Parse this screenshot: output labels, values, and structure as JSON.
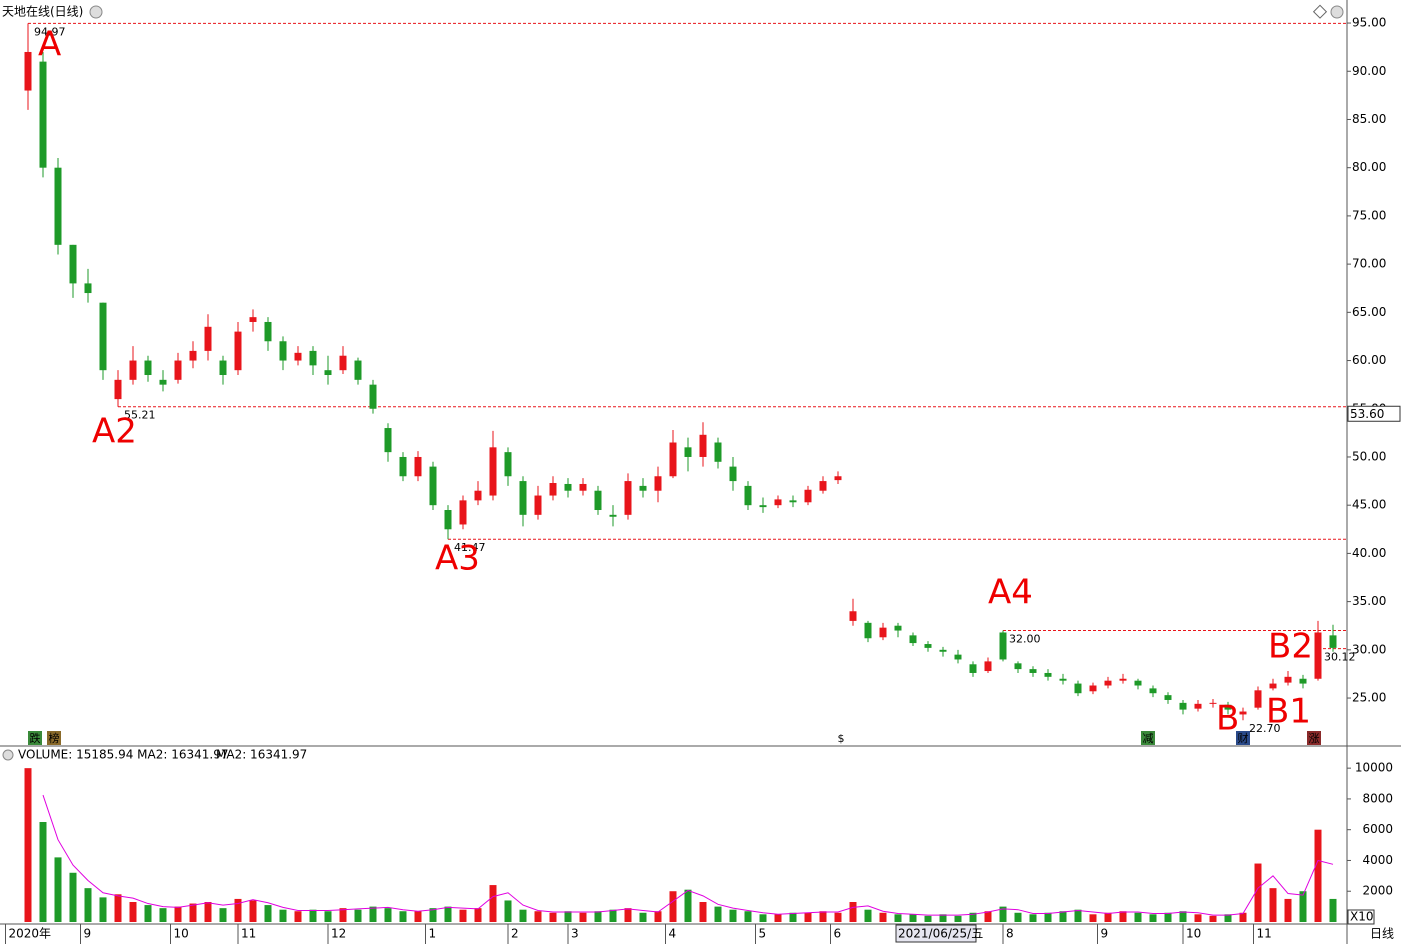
{
  "chart_data": [
    {
      "type": "candlestick",
      "title": "天地在线(日线)",
      "x": [
        0,
        1,
        2,
        3,
        4,
        5,
        6,
        7,
        8,
        9,
        10,
        11,
        12,
        13,
        14,
        15,
        16,
        17,
        18,
        19,
        20,
        21,
        22,
        23,
        24,
        25,
        26,
        27,
        28,
        29,
        30,
        31,
        32,
        33,
        34,
        35,
        36,
        37,
        38,
        39,
        40,
        41,
        42,
        43,
        44,
        45,
        46,
        47,
        48,
        49,
        50,
        51,
        52,
        53,
        54,
        55,
        56,
        57,
        58,
        59,
        60,
        61,
        62,
        63,
        64,
        65,
        66,
        67,
        68,
        69,
        70,
        71,
        72,
        73,
        74,
        75,
        76,
        77,
        78,
        79,
        80,
        81,
        82,
        83,
        84,
        85,
        86,
        87
      ],
      "ohlc": [
        [
          88,
          94.97,
          86,
          92
        ],
        [
          91,
          92,
          79,
          80
        ],
        [
          80,
          81,
          71,
          72
        ],
        [
          72,
          72,
          66.5,
          68
        ],
        [
          68,
          69.5,
          66,
          67
        ],
        [
          66,
          66,
          58,
          59
        ],
        [
          56,
          59,
          55.21,
          58
        ],
        [
          58,
          61.5,
          57.5,
          60
        ],
        [
          60,
          60.5,
          57.8,
          58.5
        ],
        [
          58,
          59,
          56.8,
          57.5
        ],
        [
          58,
          60.8,
          57.6,
          60
        ],
        [
          60,
          62,
          59.2,
          61
        ],
        [
          61,
          64.8,
          60,
          63.5
        ],
        [
          60,
          60.5,
          57.5,
          58.5
        ],
        [
          59,
          64,
          58.5,
          63
        ],
        [
          64,
          65.3,
          63,
          64.5
        ],
        [
          64,
          64.5,
          61,
          62
        ],
        [
          62,
          62.5,
          59,
          60
        ],
        [
          60,
          61.5,
          59.5,
          60.8
        ],
        [
          61,
          61.5,
          58.5,
          59.5
        ],
        [
          59,
          60.5,
          57.5,
          58.5
        ],
        [
          59,
          61.5,
          58.6,
          60.5
        ],
        [
          60,
          60.3,
          57.5,
          58
        ],
        [
          57.5,
          58,
          54.5,
          55
        ],
        [
          53,
          53.5,
          49.5,
          50.5
        ],
        [
          50,
          50.5,
          47.5,
          48
        ],
        [
          48,
          50.6,
          47.5,
          50
        ],
        [
          49,
          49.5,
          44.5,
          45
        ],
        [
          44.5,
          45,
          41.47,
          42.5
        ],
        [
          43,
          46,
          42.5,
          45.5
        ],
        [
          45.5,
          47.5,
          45,
          46.5
        ],
        [
          46,
          52.7,
          45.5,
          51
        ],
        [
          50.5,
          51,
          47,
          48
        ],
        [
          47.5,
          48,
          42.8,
          44
        ],
        [
          44,
          47,
          43.5,
          46
        ],
        [
          46,
          48,
          45.5,
          47.3
        ],
        [
          47.2,
          47.8,
          45.8,
          46.5
        ],
        [
          46.5,
          47.8,
          46,
          47.2
        ],
        [
          46.5,
          47,
          44,
          44.5
        ],
        [
          44,
          45,
          42.8,
          43.8
        ],
        [
          44,
          48.3,
          43.5,
          47.5
        ],
        [
          47,
          47.8,
          45.8,
          46.5
        ],
        [
          46.5,
          49,
          45.3,
          48
        ],
        [
          48,
          52.8,
          47.8,
          51.5
        ],
        [
          51,
          52,
          48.5,
          50
        ],
        [
          50,
          53.6,
          49,
          52.3
        ],
        [
          51.5,
          52,
          48.8,
          49.5
        ],
        [
          49,
          50,
          46.5,
          47.5
        ],
        [
          47,
          47.5,
          44.5,
          45
        ],
        [
          45,
          45.8,
          44.2,
          44.8
        ],
        [
          45,
          46,
          44.7,
          45.6
        ],
        [
          45.5,
          46,
          44.8,
          45.3
        ],
        [
          45.3,
          47,
          45,
          46.6
        ],
        [
          46.5,
          48,
          46.2,
          47.5
        ],
        [
          47.6,
          48.5,
          47.2,
          48
        ],
        [
          33,
          35.3,
          32.5,
          34
        ],
        [
          32.8,
          33,
          30.8,
          31.2
        ],
        [
          31.3,
          32.8,
          31,
          32.3
        ],
        [
          32.5,
          32.8,
          31.3,
          32
        ],
        [
          31.5,
          31.8,
          30.4,
          30.7
        ],
        [
          30.6,
          30.9,
          29.8,
          30.2
        ],
        [
          30,
          30.3,
          29.3,
          29.8
        ],
        [
          29.5,
          30,
          28.6,
          29
        ],
        [
          28.5,
          28.8,
          27.2,
          27.6
        ],
        [
          27.8,
          29.2,
          27.6,
          28.8
        ],
        [
          31.8,
          32,
          28.8,
          29
        ],
        [
          28.6,
          28.8,
          27.6,
          28
        ],
        [
          28,
          28.3,
          27.2,
          27.6
        ],
        [
          27.6,
          28,
          26.8,
          27.2
        ],
        [
          27,
          27.5,
          26.4,
          26.8
        ],
        [
          26.5,
          26.8,
          25.2,
          25.5
        ],
        [
          25.7,
          26.6,
          25.4,
          26.3
        ],
        [
          26.3,
          27.2,
          26,
          26.8
        ],
        [
          26.8,
          27.5,
          26.5,
          27
        ],
        [
          26.8,
          27,
          25.9,
          26.3
        ],
        [
          26,
          26.3,
          25.1,
          25.5
        ],
        [
          25.3,
          25.6,
          24.4,
          24.8
        ],
        [
          24.5,
          24.8,
          23.3,
          23.8
        ],
        [
          23.9,
          24.8,
          23.6,
          24.4
        ],
        [
          24.4,
          24.9,
          24,
          24.5
        ],
        [
          24.3,
          24.6,
          23.3,
          23.8
        ],
        [
          23.3,
          24,
          22.7,
          23.6
        ],
        [
          24,
          26.2,
          23.8,
          25.8
        ],
        [
          26,
          27,
          25.8,
          26.5
        ],
        [
          26.6,
          27.8,
          26.3,
          27.2
        ],
        [
          27,
          27.4,
          26,
          26.5
        ],
        [
          27,
          33,
          26.8,
          31.8
        ],
        [
          31.5,
          32.6,
          29.8,
          30.2
        ]
      ],
      "up_color": "#e8151b",
      "down_color": "#1e9a28",
      "xlim": [
        -1.5,
        87.9
      ],
      "ylim": [
        20.13,
        97.39
      ],
      "yticks": [
        {
          "value": 25,
          "label": "25.00"
        },
        {
          "value": 30,
          "label": "30.00"
        },
        {
          "value": 35,
          "label": "35.00"
        },
        {
          "value": 40,
          "label": "40.00"
        },
        {
          "value": 45,
          "label": "45.00"
        },
        {
          "value": 50,
          "label": "50.00"
        },
        {
          "value": 55,
          "label": "55.00"
        },
        {
          "value": 60,
          "label": "60.00"
        },
        {
          "value": 65,
          "label": "65.00"
        },
        {
          "value": 70,
          "label": "70.00"
        },
        {
          "value": 75,
          "label": "75.00"
        },
        {
          "value": 80,
          "label": "80.00"
        },
        {
          "value": 85,
          "label": "85.00"
        },
        {
          "value": 90,
          "label": "90.00"
        },
        {
          "value": 95,
          "label": "95.00"
        }
      ],
      "price_marks": [
        {
          "x": 0,
          "value": 94.97,
          "label": "94.97",
          "line": true
        },
        {
          "x": 6,
          "value": 55.21,
          "label": "55.21",
          "line": true
        },
        {
          "x": 28,
          "value": 41.47,
          "label": "41.47",
          "line": true
        },
        {
          "x": 65,
          "value": 32,
          "label": "32.00",
          "line": true
        },
        {
          "x": 81,
          "value": 22.7,
          "label": "22.70",
          "line": false
        },
        {
          "x": 86,
          "value": 30.12,
          "label": "30.12",
          "line": true
        }
      ],
      "cursor": {
        "value": 53.6,
        "label": "53.60"
      },
      "annotations": [
        "A",
        "A2",
        "A3",
        "A4",
        "B",
        "B1",
        "B2"
      ],
      "badges": [
        "跌",
        "榜",
        "$",
        "减",
        "财",
        "涨"
      ]
    },
    {
      "type": "bar",
      "title": "VOLUME: 15185.94  MA2: 16341.97",
      "x": [
        0,
        1,
        2,
        3,
        4,
        5,
        6,
        7,
        8,
        9,
        10,
        11,
        12,
        13,
        14,
        15,
        16,
        17,
        18,
        19,
        20,
        21,
        22,
        23,
        24,
        25,
        26,
        27,
        28,
        29,
        30,
        31,
        32,
        33,
        34,
        35,
        36,
        37,
        38,
        39,
        40,
        41,
        42,
        43,
        44,
        45,
        46,
        47,
        48,
        49,
        50,
        51,
        52,
        53,
        54,
        55,
        56,
        57,
        58,
        59,
        60,
        61,
        62,
        63,
        64,
        65,
        66,
        67,
        68,
        69,
        70,
        71,
        72,
        73,
        74,
        75,
        76,
        77,
        78,
        79,
        80,
        81,
        82,
        83,
        84,
        85,
        86,
        87
      ],
      "values": [
        10000,
        6500,
        4200,
        3200,
        2200,
        1600,
        1800,
        1300,
        1100,
        900,
        1000,
        1200,
        1300,
        900,
        1500,
        1400,
        1100,
        800,
        700,
        800,
        700,
        900,
        800,
        1000,
        900,
        700,
        700,
        900,
        1000,
        800,
        900,
        2400,
        1400,
        800,
        700,
        600,
        700,
        600,
        700,
        800,
        900,
        600,
        700,
        2000,
        2100,
        1300,
        1000,
        800,
        700,
        500,
        500,
        600,
        600,
        700,
        600,
        1300,
        800,
        600,
        500,
        500,
        400,
        500,
        400,
        600,
        700,
        1000,
        600,
        500,
        600,
        700,
        800,
        500,
        600,
        700,
        600,
        500,
        600,
        700,
        500,
        400,
        500,
        600,
        3800,
        2200,
        1500,
        2000,
        6000,
        1500
      ],
      "series": [
        {
          "name": "MA2: 16341.97",
          "color": "#e000e0",
          "values": [
            null,
            8250,
            5350,
            3700,
            2700,
            1900,
            1700,
            1550,
            1200,
            1000,
            950,
            1100,
            1250,
            1100,
            1200,
            1450,
            1250,
            950,
            750,
            750,
            750,
            800,
            850,
            900,
            950,
            800,
            700,
            800,
            950,
            900,
            850,
            1650,
            1900,
            1100,
            750,
            650,
            650,
            650,
            650,
            750,
            850,
            750,
            650,
            1350,
            2050,
            1700,
            1150,
            900,
            750,
            600,
            500,
            550,
            600,
            650,
            650,
            950,
            1050,
            700,
            550,
            500,
            450,
            450,
            450,
            500,
            650,
            850,
            800,
            550,
            550,
            650,
            750,
            650,
            550,
            650,
            650,
            550,
            550,
            650,
            600,
            450,
            450,
            550,
            2200,
            3000,
            1850,
            1750,
            4000,
            3750
          ]
        }
      ],
      "xlim": [
        -1.5,
        87.9
      ],
      "ylim": [
        0,
        10400
      ],
      "yticks": [
        2000,
        4000,
        6000,
        8000,
        10000
      ],
      "multiplier_label": "X10",
      "period_label": "日线",
      "xticks": [
        {
          "value": -1.5,
          "label": "2020年"
        },
        {
          "value": 3.5,
          "label": "9"
        },
        {
          "value": 9.5,
          "label": "10"
        },
        {
          "value": 14,
          "label": "11"
        },
        {
          "value": 20,
          "label": "12"
        },
        {
          "value": 26.5,
          "label": "1"
        },
        {
          "value": 32,
          "label": "2"
        },
        {
          "value": 36,
          "label": "3"
        },
        {
          "value": 42.5,
          "label": "4"
        },
        {
          "value": 48.5,
          "label": "5"
        },
        {
          "value": 53.5,
          "label": "6"
        },
        {
          "value": 65,
          "label": "8"
        },
        {
          "value": 71.3,
          "label": "9"
        },
        {
          "value": 77,
          "label": "10"
        },
        {
          "value": 81.7,
          "label": "11"
        }
      ],
      "cursor": {
        "value": 58,
        "label": "2021/06/25/五"
      }
    }
  ]
}
